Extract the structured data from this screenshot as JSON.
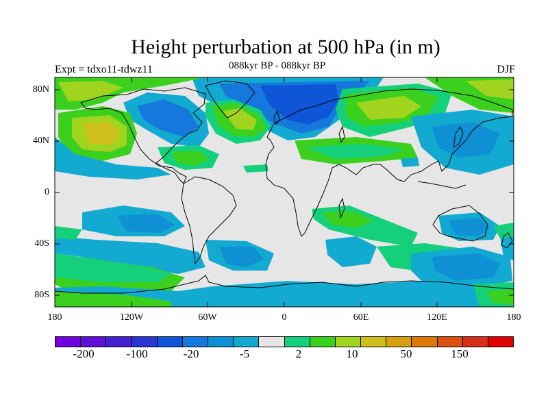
{
  "header": {
    "title": "Height perturbation at 500 hPa (in m)",
    "subtitle": "088kyr BP - 088kyr BP",
    "experiment": "Expt = tdxo11-tdwz11",
    "season": "DJF"
  },
  "map": {
    "projection": "cylindrical equidistant",
    "lat_labels": [
      "80N",
      "40N",
      "0",
      "40S",
      "80S"
    ],
    "lon_labels": [
      "180",
      "120W",
      "60W",
      "0",
      "60E",
      "120E",
      "180"
    ],
    "background_color": "#e6e6e6"
  },
  "colorbar": {
    "colors": [
      "#7000e0",
      "#5e10d8",
      "#4420d0",
      "#2a36d4",
      "#0e55d8",
      "#1478dc",
      "#1090d4",
      "#12aad0",
      "#e6e6e6",
      "#14d07a",
      "#3cd01e",
      "#a0d41e",
      "#d0c01e",
      "#d8a010",
      "#dc7808",
      "#dc5010",
      "#d83018",
      "#e00000"
    ],
    "labels": [
      "-200",
      "-100",
      "-20",
      "-5",
      "2",
      "10",
      "50",
      "150"
    ]
  }
}
